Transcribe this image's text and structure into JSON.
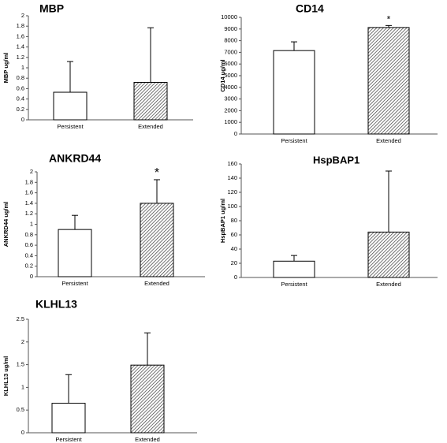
{
  "chart_data": [
    {
      "type": "bar",
      "title": "MBP",
      "ylabel": "MBP ug/ml",
      "ylim": [
        0,
        2
      ],
      "yticks": [
        "0",
        "0.2",
        "0.4",
        "0.6",
        "0.8",
        "1",
        "1.2",
        "1.4",
        "1.6",
        "1.8",
        "2"
      ],
      "categories": [
        "Persistent",
        "Extended"
      ],
      "values": [
        0.53,
        0.72
      ],
      "error_upper": [
        1.12,
        1.77
      ],
      "annotations": [
        "",
        ""
      ],
      "fills": [
        "white",
        "hatched"
      ]
    },
    {
      "type": "bar",
      "title": "CD14",
      "ylabel": "CD14 ug/ml",
      "ylim": [
        0,
        10000
      ],
      "yticks": [
        "0",
        "1000",
        "2000",
        "3000",
        "4000",
        "5000",
        "6000",
        "7000",
        "8000",
        "9000",
        "10000"
      ],
      "categories": [
        "Persistent",
        "Extended"
      ],
      "values": [
        7150,
        9130
      ],
      "error_upper": [
        7900,
        9300
      ],
      "annotations": [
        "",
        "*"
      ],
      "fills": [
        "white",
        "hatched"
      ]
    },
    {
      "type": "bar",
      "title": "ANKRD44",
      "ylabel": "ANKRD44 ug/ml",
      "ylim": [
        0,
        2
      ],
      "yticks": [
        "0",
        "0.2",
        "0.4",
        "0.6",
        "0.8",
        "1",
        "1.2",
        "1.4",
        "1.6",
        "1.8",
        "2"
      ],
      "categories": [
        "Persistent",
        "Extended"
      ],
      "values": [
        0.9,
        1.4
      ],
      "error_upper": [
        1.17,
        1.85
      ],
      "annotations": [
        "",
        "*"
      ],
      "fills": [
        "white",
        "hatched"
      ]
    },
    {
      "type": "bar",
      "title": "HspBAP1",
      "ylabel": "HspBAP1 ug/ml",
      "ylim": [
        0,
        160
      ],
      "yticks": [
        "0",
        "20",
        "40",
        "60",
        "80",
        "100",
        "120",
        "140",
        "160"
      ],
      "categories": [
        "Persistent",
        "Extended"
      ],
      "values": [
        23,
        64
      ],
      "error_upper": [
        31,
        150
      ],
      "annotations": [
        "",
        ""
      ],
      "fills": [
        "white",
        "hatched"
      ]
    },
    {
      "type": "bar",
      "title": "KLHL13",
      "ylabel": "KLHL13 ug/ml",
      "ylim": [
        0,
        2.5
      ],
      "yticks": [
        "0",
        "0.5",
        "1",
        "1.5",
        "2",
        "2.5"
      ],
      "categories": [
        "Persistent",
        "Extended"
      ],
      "values": [
        0.65,
        1.49
      ],
      "error_upper": [
        1.28,
        2.2
      ],
      "annotations": [
        "",
        ""
      ],
      "fills": [
        "white",
        "hatched"
      ]
    }
  ]
}
